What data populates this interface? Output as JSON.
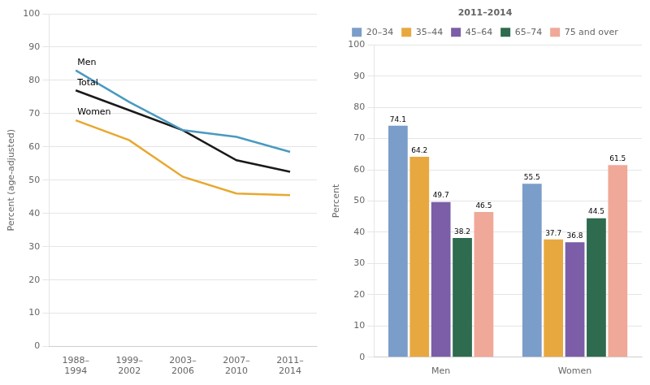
{
  "chart_data": [
    {
      "type": "line",
      "categories": [
        "1988–\n1994",
        "1999–\n2002",
        "2003–\n2006",
        "2007–\n2010",
        "2011–\n2014"
      ],
      "series": [
        {
          "name": "Men",
          "color": "#4a9abf",
          "values": [
            83.0,
            73.5,
            65.0,
            63.0,
            58.5
          ]
        },
        {
          "name": "Total",
          "color": "#1a1a1a",
          "values": [
            77.0,
            71.0,
            65.0,
            56.0,
            52.5
          ]
        },
        {
          "name": "Women",
          "color": "#e8a830",
          "values": [
            68.0,
            62.0,
            51.0,
            46.0,
            45.5
          ]
        }
      ],
      "ylabel": "Percent (age-adjusted)",
      "ylim": [
        0,
        100
      ],
      "yticks": [
        0,
        10,
        20,
        30,
        40,
        50,
        60,
        70,
        80,
        90,
        100
      ],
      "grid": true
    },
    {
      "type": "bar",
      "title": "2011–2014",
      "categories": [
        "Men",
        "Women"
      ],
      "series": [
        {
          "name": "20–34",
          "color": "#7b9dc9",
          "values": [
            74.1,
            55.5
          ]
        },
        {
          "name": "35–44",
          "color": "#e8a840",
          "values": [
            64.2,
            37.7
          ]
        },
        {
          "name": "45–64",
          "color": "#7b5ea7",
          "values": [
            49.7,
            36.8
          ]
        },
        {
          "name": "65–74",
          "color": "#2e6b4f",
          "values": [
            38.2,
            44.5
          ]
        },
        {
          "name": "75 and over",
          "color": "#f0a898",
          "values": [
            46.5,
            61.5
          ]
        }
      ],
      "ylabel": "Percent",
      "ylim": [
        0,
        100
      ],
      "yticks": [
        0,
        10,
        20,
        30,
        40,
        50,
        60,
        70,
        80,
        90,
        100
      ],
      "grid": true,
      "legend": "top",
      "data_labels": true
    }
  ]
}
